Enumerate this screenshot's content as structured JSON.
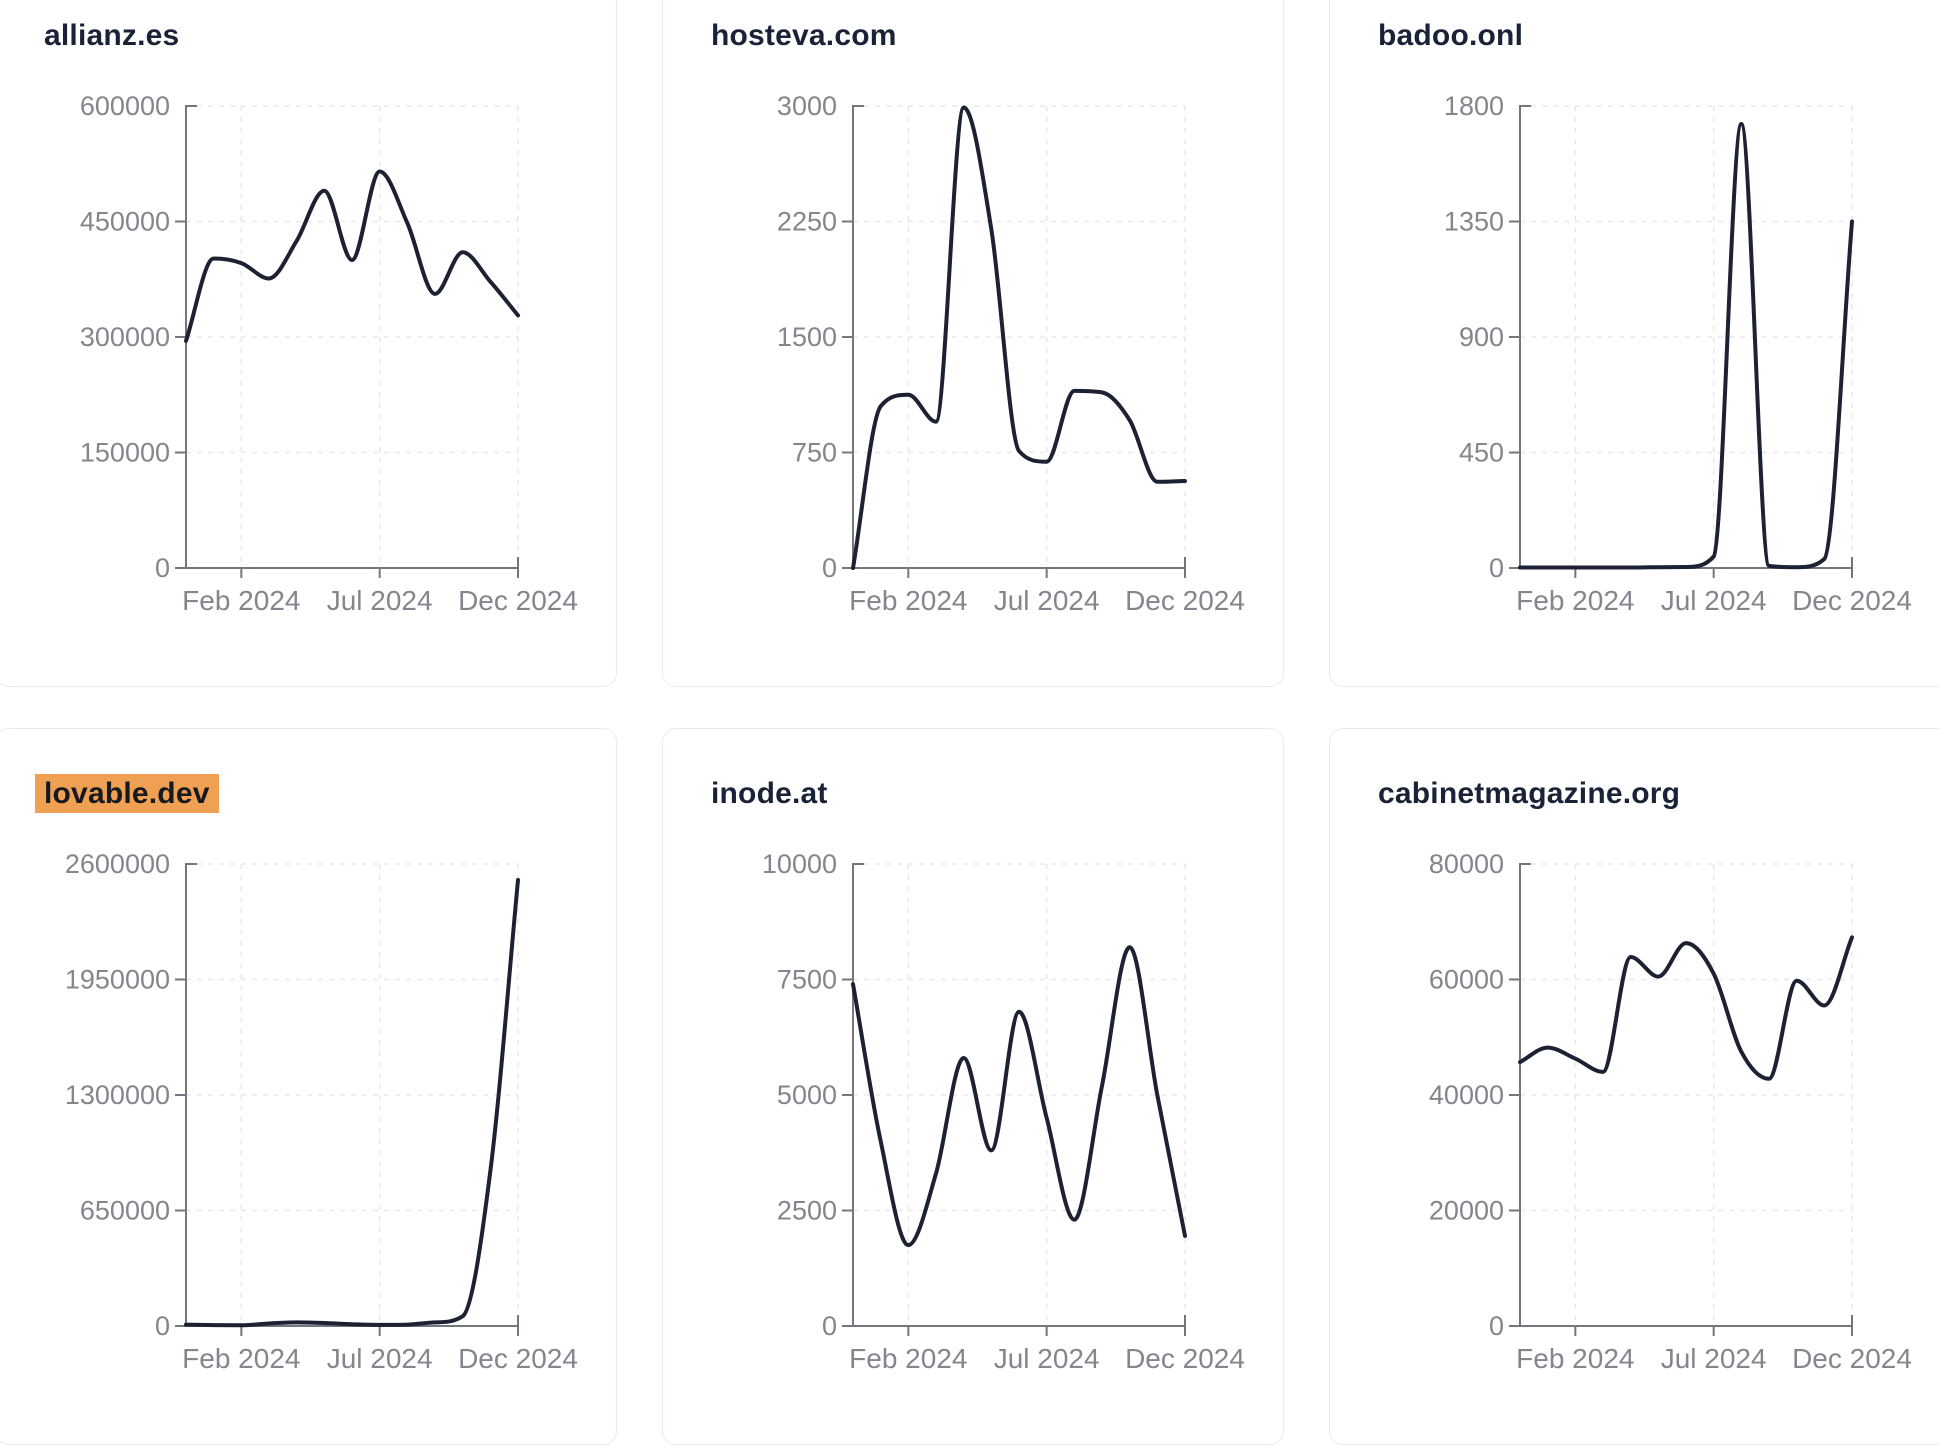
{
  "page": {
    "background": "#ffffff"
  },
  "theme": {
    "card_background": "#ffffff",
    "card_border": "#e9ebf2",
    "line_color": "#1c2233",
    "title_color": "#1a2238",
    "axis_color": "#74777d",
    "tick_label_color": "#83868c",
    "grid_color": "#e8e8ec",
    "highlight_color": "#f0a052",
    "highlight_text_color": "#16191f"
  },
  "chart_data": [
    {
      "type": "line",
      "title": "allianz.es",
      "highlighted": false,
      "x": [
        "Dec 2023",
        "Jan 2024",
        "Feb 2024",
        "Mar 2024",
        "Apr 2024",
        "May 2024",
        "Jun 2024",
        "Jul 2024",
        "Aug 2024",
        "Sep 2024",
        "Oct 2024",
        "Nov 2024",
        "Dec 2024"
      ],
      "values": [
        295000,
        402000,
        396000,
        376000,
        425000,
        490000,
        400000,
        515000,
        448000,
        356000,
        410000,
        372000,
        328000
      ],
      "ylim": [
        0,
        600000
      ],
      "y_ticks": [
        600000,
        450000,
        300000,
        150000,
        0
      ],
      "x_ticks": [
        {
          "label": "Feb 2024",
          "month_index": 2
        },
        {
          "label": "Jul 2024",
          "month_index": 7
        },
        {
          "label": "Dec 2024",
          "month_index": 12
        }
      ],
      "grid": true,
      "legend": false
    },
    {
      "type": "line",
      "title": "hosteva.com",
      "highlighted": false,
      "x": [
        "Dec 2023",
        "Jan 2024",
        "Feb 2024",
        "Mar 2024",
        "Apr 2024",
        "May 2024",
        "Jun 2024",
        "Jul 2024",
        "Aug 2024",
        "Sep 2024",
        "Oct 2024",
        "Nov 2024",
        "Dec 2024"
      ],
      "values": [
        0,
        1050,
        1125,
        950,
        2990,
        2200,
        760,
        690,
        1150,
        1140,
        960,
        560,
        565
      ],
      "ylim": [
        0,
        3000
      ],
      "y_ticks": [
        3000,
        2250,
        1500,
        750,
        0
      ],
      "x_ticks": [
        {
          "label": "Feb 2024",
          "month_index": 2
        },
        {
          "label": "Jul 2024",
          "month_index": 7
        },
        {
          "label": "Dec 2024",
          "month_index": 12
        }
      ],
      "grid": true,
      "legend": false
    },
    {
      "type": "line",
      "title": "badoo.onl",
      "highlighted": false,
      "x": [
        "Dec 2023",
        "Jan 2024",
        "Feb 2024",
        "Mar 2024",
        "Apr 2024",
        "May 2024",
        "Jun 2024",
        "Jul 2024",
        "Aug 2024",
        "Sep 2024",
        "Oct 2024",
        "Nov 2024",
        "Dec 2024"
      ],
      "values": [
        2,
        2,
        2,
        2,
        2,
        3,
        4,
        45,
        1730,
        8,
        3,
        35,
        1350
      ],
      "ylim": [
        0,
        1800
      ],
      "y_ticks": [
        1800,
        1350,
        900,
        450,
        0
      ],
      "x_ticks": [
        {
          "label": "Feb 2024",
          "month_index": 2
        },
        {
          "label": "Jul 2024",
          "month_index": 7
        },
        {
          "label": "Dec 2024",
          "month_index": 12
        }
      ],
      "grid": true,
      "legend": false
    },
    {
      "type": "line",
      "title": "lovable.dev",
      "highlighted": true,
      "x": [
        "Dec 2023",
        "Jan 2024",
        "Feb 2024",
        "Mar 2024",
        "Apr 2024",
        "May 2024",
        "Jun 2024",
        "Jul 2024",
        "Aug 2024",
        "Sep 2024",
        "Oct 2024",
        "Nov 2024",
        "Dec 2024"
      ],
      "values": [
        8000,
        5000,
        4000,
        14000,
        20000,
        17000,
        10000,
        6000,
        8000,
        20000,
        55000,
        870000,
        2510000
      ],
      "ylim": [
        0,
        2600000
      ],
      "y_ticks": [
        2600000,
        1950000,
        1300000,
        650000,
        0
      ],
      "x_ticks": [
        {
          "label": "Feb 2024",
          "month_index": 2
        },
        {
          "label": "Jul 2024",
          "month_index": 7
        },
        {
          "label": "Dec 2024",
          "month_index": 12
        }
      ],
      "grid": true,
      "legend": false
    },
    {
      "type": "line",
      "title": "inode.at",
      "highlighted": false,
      "x": [
        "Dec 2023",
        "Jan 2024",
        "Feb 2024",
        "Mar 2024",
        "Apr 2024",
        "May 2024",
        "Jun 2024",
        "Jul 2024",
        "Aug 2024",
        "Sep 2024",
        "Oct 2024",
        "Nov 2024",
        "Dec 2024"
      ],
      "values": [
        7400,
        4000,
        1750,
        3300,
        5800,
        3800,
        6800,
        4500,
        2300,
        5200,
        8200,
        5000,
        1950
      ],
      "ylim": [
        0,
        10000
      ],
      "y_ticks": [
        10000,
        7500,
        5000,
        2500,
        0
      ],
      "x_ticks": [
        {
          "label": "Feb 2024",
          "month_index": 2
        },
        {
          "label": "Jul 2024",
          "month_index": 7
        },
        {
          "label": "Dec 2024",
          "month_index": 12
        }
      ],
      "grid": true,
      "legend": false
    },
    {
      "type": "line",
      "title": "cabinetmagazine.org",
      "highlighted": false,
      "x": [
        "Dec 2023",
        "Jan 2024",
        "Feb 2024",
        "Mar 2024",
        "Apr 2024",
        "May 2024",
        "Jun 2024",
        "Jul 2024",
        "Aug 2024",
        "Sep 2024",
        "Oct 2024",
        "Nov 2024",
        "Dec 2024"
      ],
      "values": [
        45700,
        48200,
        46300,
        44000,
        63900,
        60500,
        66300,
        61000,
        47500,
        42800,
        59800,
        55500,
        67300
      ],
      "ylim": [
        0,
        80000
      ],
      "y_ticks": [
        80000,
        60000,
        40000,
        20000,
        0
      ],
      "x_ticks": [
        {
          "label": "Feb 2024",
          "month_index": 2
        },
        {
          "label": "Jul 2024",
          "month_index": 7
        },
        {
          "label": "Dec 2024",
          "month_index": 12
        }
      ],
      "grid": true,
      "legend": false
    }
  ]
}
